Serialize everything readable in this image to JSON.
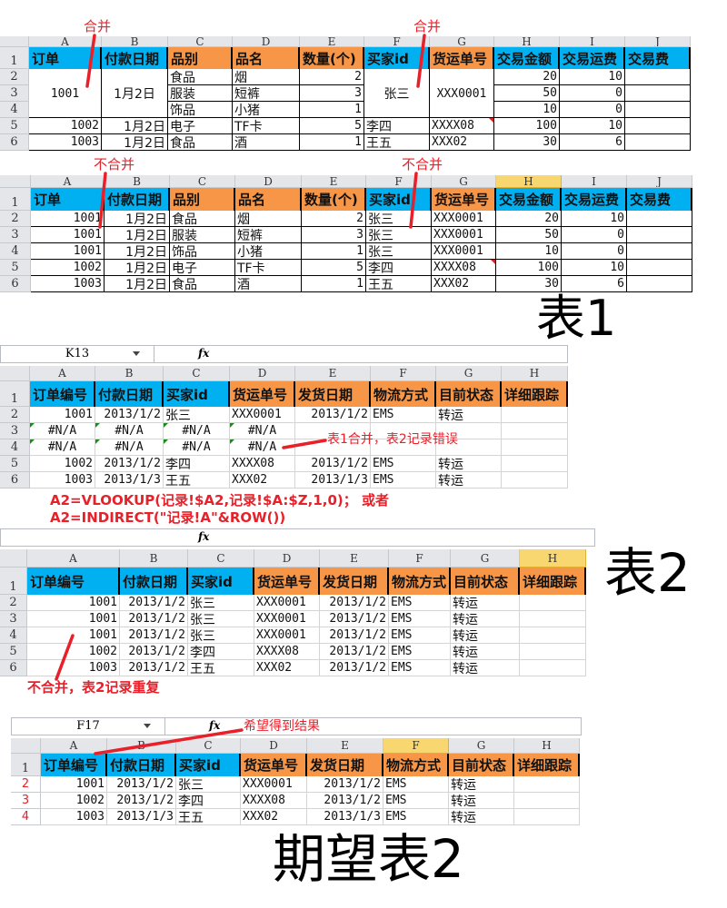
{
  "colors": {
    "blue_header": "#00b0f0",
    "orange_header": "#f79646",
    "annotation_red": "#e8202a",
    "selected_col": "#f9d770"
  },
  "labels": {
    "table1": "表1",
    "table2": "表2",
    "expected_table2": "期望表2",
    "merged_1": "合并",
    "merged_2": "合并",
    "not_merged_1": "不合并",
    "not_merged_2": "不合并",
    "error_note": "表1合并，表2记录错误",
    "formula_1": "A2=VLOOKUP(记录!$A2,记录!$A:$Z,1,0)； 或者",
    "formula_2": "A2=INDIRECT(\"记录!A\"&ROW())",
    "duplicate_note": "不合并，表2记录重复",
    "expected_note": "希望得到结果",
    "fx_icon": "fx"
  },
  "sheets": [
    {
      "col_letters": [
        "A",
        "B",
        "C",
        "D",
        "E",
        "F",
        "G",
        "H",
        "I",
        "J"
      ],
      "row_labels": [
        "1",
        "2",
        "3",
        "4",
        "5",
        "6"
      ],
      "headers": [
        "订单",
        "付款日期",
        "品别",
        "品名",
        "数量(个)",
        "买家id",
        "货运单号",
        "交易金额",
        "交易运费",
        "交易费"
      ],
      "header_colors": [
        "blue",
        "blue",
        "orange",
        "orange",
        "orange",
        "blue",
        "orange",
        "blue",
        "blue",
        "blue"
      ],
      "rows": [
        [
          "",
          "",
          "食品",
          "烟",
          "2",
          "",
          "",
          "20",
          "10",
          ""
        ],
        [
          "1001",
          "1月2日",
          "服装",
          "短裤",
          "3",
          "张三",
          "XXX0001",
          "50",
          "0",
          ""
        ],
        [
          "",
          "",
          "饰品",
          "小猪",
          "1",
          "",
          "",
          "10",
          "0",
          ""
        ],
        [
          "1002",
          "1月2日",
          "电子",
          "TF卡",
          "5",
          "李四",
          "XXXX08",
          "100",
          "10",
          ""
        ],
        [
          "1003",
          "1月2日",
          "食品",
          "酒",
          "1",
          "王五",
          "XXX02",
          "30",
          "6",
          ""
        ]
      ]
    },
    {
      "col_letters": [
        "A",
        "B",
        "C",
        "D",
        "E",
        "F",
        "G",
        "H",
        "I",
        "J"
      ],
      "row_labels": [
        "1",
        "2",
        "3",
        "4",
        "5",
        "6"
      ],
      "selected_col": "H",
      "headers": [
        "订单",
        "付款日期",
        "品别",
        "品名",
        "数量(个)",
        "买家id",
        "货运单号",
        "交易金额",
        "交易运费",
        "交易费"
      ],
      "header_colors": [
        "blue",
        "blue",
        "orange",
        "orange",
        "orange",
        "blue",
        "orange",
        "blue",
        "blue",
        "blue"
      ],
      "rows": [
        [
          "1001",
          "1月2日",
          "食品",
          "烟",
          "2",
          "张三",
          "XXX0001",
          "20",
          "10",
          ""
        ],
        [
          "1001",
          "1月2日",
          "服装",
          "短裤",
          "3",
          "张三",
          "XXX0001",
          "50",
          "0",
          ""
        ],
        [
          "1001",
          "1月2日",
          "饰品",
          "小猪",
          "1",
          "张三",
          "XXX0001",
          "10",
          "0",
          ""
        ],
        [
          "1002",
          "1月2日",
          "电子",
          "TF卡",
          "5",
          "李四",
          "XXXX08",
          "100",
          "10",
          ""
        ],
        [
          "1003",
          "1月2日",
          "食品",
          "酒",
          "1",
          "王五",
          "XXX02",
          "30",
          "6",
          ""
        ]
      ]
    },
    {
      "name_box": "K13",
      "col_letters": [
        "A",
        "B",
        "C",
        "D",
        "E",
        "F",
        "G",
        "H"
      ],
      "row_labels": [
        "1",
        "2",
        "3",
        "4",
        "5",
        "6"
      ],
      "headers": [
        "订单编号",
        "付款日期",
        "买家id",
        "货运单号",
        "发货日期",
        "物流方式",
        "目前状态",
        "详细跟踪"
      ],
      "header_colors": [
        "blue",
        "blue",
        "blue",
        "orange",
        "orange",
        "orange",
        "orange",
        "orange"
      ],
      "rows": [
        [
          "1001",
          "2013/1/2",
          "张三",
          "XXX0001",
          "2013/1/2",
          "EMS",
          "转运",
          ""
        ],
        [
          "#N/A",
          "#N/A",
          "#N/A",
          "#N/A",
          "",
          "",
          "",
          ""
        ],
        [
          "#N/A",
          "#N/A",
          "#N/A",
          "#N/A",
          "",
          "",
          "",
          ""
        ],
        [
          "1002",
          "2013/1/2",
          "李四",
          "XXXX08",
          "2013/1/2",
          "EMS",
          "转运",
          ""
        ],
        [
          "1003",
          "2013/1/3",
          "王五",
          "XXX02",
          "2013/1/3",
          "EMS",
          "转运",
          ""
        ]
      ]
    },
    {
      "col_letters": [
        "A",
        "B",
        "C",
        "D",
        "E",
        "F",
        "G",
        "H"
      ],
      "row_labels": [
        "1",
        "2",
        "3",
        "4",
        "5",
        "6"
      ],
      "selected_col": "H",
      "headers": [
        "订单编号",
        "付款日期",
        "买家id",
        "货运单号",
        "发货日期",
        "物流方式",
        "目前状态",
        "详细跟踪"
      ],
      "header_colors": [
        "blue",
        "blue",
        "blue",
        "orange",
        "orange",
        "orange",
        "orange",
        "orange"
      ],
      "rows": [
        [
          "1001",
          "2013/1/2",
          "张三",
          "XXX0001",
          "2013/1/2",
          "EMS",
          "转运",
          ""
        ],
        [
          "1001",
          "2013/1/2",
          "张三",
          "XXX0001",
          "2013/1/2",
          "EMS",
          "转运",
          ""
        ],
        [
          "1001",
          "2013/1/2",
          "张三",
          "XXX0001",
          "2013/1/2",
          "EMS",
          "转运",
          ""
        ],
        [
          "1002",
          "2013/1/2",
          "李四",
          "XXXX08",
          "2013/1/2",
          "EMS",
          "转运",
          ""
        ],
        [
          "1003",
          "2013/1/2",
          "王五",
          "XXX02",
          "2013/1/2",
          "EMS",
          "转运",
          ""
        ]
      ]
    },
    {
      "name_box": "F17",
      "col_letters": [
        "A",
        "B",
        "C",
        "D",
        "E",
        "F",
        "G",
        "H"
      ],
      "row_labels": [
        "1",
        "2",
        "3",
        "4"
      ],
      "selected_col": "F",
      "headers": [
        "订单编号",
        "付款日期",
        "买家id",
        "货运单号",
        "发货日期",
        "物流方式",
        "目前状态",
        "详细跟踪"
      ],
      "header_colors": [
        "blue",
        "blue",
        "blue",
        "orange",
        "orange",
        "orange",
        "orange",
        "orange"
      ],
      "rows": [
        [
          "1001",
          "2013/1/2",
          "张三",
          "XXX0001",
          "2013/1/2",
          "EMS",
          "转运",
          ""
        ],
        [
          "1002",
          "2013/1/2",
          "李四",
          "XXXX08",
          "2013/1/2",
          "EMS",
          "转运",
          ""
        ],
        [
          "1003",
          "2013/1/3",
          "王五",
          "XXX02",
          "2013/1/3",
          "EMS",
          "转运",
          ""
        ]
      ]
    }
  ]
}
